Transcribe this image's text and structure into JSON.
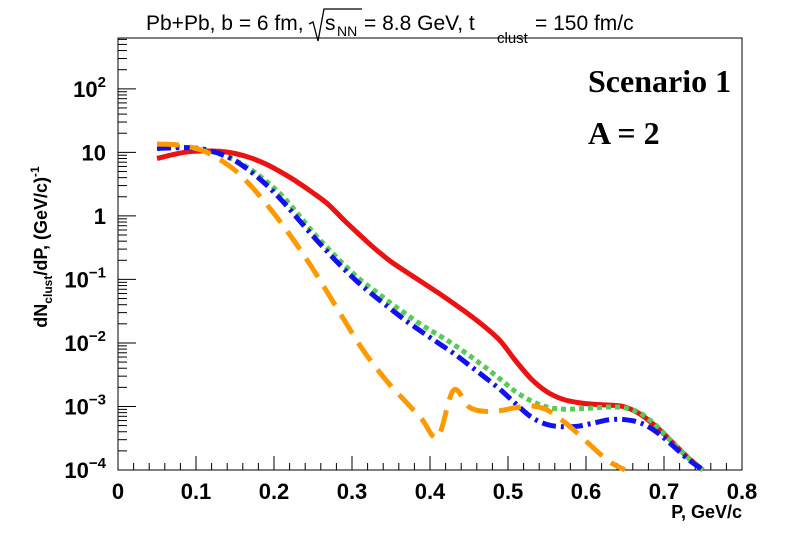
{
  "chart_data": {
    "type": "line",
    "title": {
      "prefix": "Pb+Pb, b = 6 fm,",
      "sqrt_s": "s",
      "sqrt_s_sub": "NN",
      "energy": " = 8.8 GeV, t",
      "t_sub": "clust",
      "time": " = 150 fm/c"
    },
    "xlabel": "P, GeV/c",
    "ylabel": {
      "base": "dN",
      "sub": "clust",
      "mid": "/dP, (GeV/c)",
      "sup": "-1"
    },
    "xlim": [
      0,
      0.8
    ],
    "ylim_log10": [
      -4,
      2.8
    ],
    "yscale": "log",
    "x_ticks": [
      "0",
      "0.1",
      "0.2",
      "0.3",
      "0.4",
      "0.5",
      "0.6",
      "0.7",
      "0.8"
    ],
    "y_ticks": [
      {
        "text": "10",
        "sup": "−4"
      },
      {
        "text": "10",
        "sup": "−3"
      },
      {
        "text": "10",
        "sup": "−2"
      },
      {
        "text": "10",
        "sup": "−1"
      },
      {
        "text": "1",
        "sup": ""
      },
      {
        "text": "10",
        "sup": ""
      },
      {
        "text": "10",
        "sup": "2"
      }
    ],
    "annotations": [
      "Scenario 1",
      "A = 2"
    ],
    "series": [
      {
        "name": "red-solid",
        "color": "#ee1111",
        "style": "solid",
        "x": [
          0.05,
          0.07,
          0.09,
          0.11,
          0.13,
          0.15,
          0.17,
          0.19,
          0.21,
          0.23,
          0.25,
          0.27,
          0.29,
          0.31,
          0.33,
          0.35,
          0.37,
          0.39,
          0.41,
          0.43,
          0.45,
          0.47,
          0.49,
          0.51,
          0.53,
          0.55,
          0.57,
          0.59,
          0.61,
          0.63,
          0.65,
          0.67,
          0.69,
          0.71,
          0.73,
          0.75
        ],
        "y": [
          8.0,
          9.2,
          10.2,
          10.5,
          10.4,
          9.6,
          8.2,
          6.5,
          4.8,
          3.4,
          2.3,
          1.5,
          0.85,
          0.5,
          0.3,
          0.19,
          0.13,
          0.09,
          0.062,
          0.042,
          0.028,
          0.018,
          0.0108,
          0.0052,
          0.0027,
          0.0017,
          0.0013,
          0.00115,
          0.00108,
          0.00105,
          0.00098,
          0.00075,
          0.00048,
          0.00028,
          0.00016,
          0.0001
        ]
      },
      {
        "name": "green-dotted",
        "color": "#55cc55",
        "style": "dotted",
        "x": [
          0.05,
          0.07,
          0.09,
          0.11,
          0.13,
          0.15,
          0.17,
          0.19,
          0.21,
          0.23,
          0.25,
          0.27,
          0.29,
          0.31,
          0.33,
          0.35,
          0.37,
          0.39,
          0.41,
          0.43,
          0.45,
          0.47,
          0.49,
          0.51,
          0.53,
          0.55,
          0.57,
          0.59,
          0.61,
          0.63,
          0.65,
          0.67,
          0.69,
          0.71,
          0.73,
          0.75
        ],
        "y": [
          12.5,
          12.3,
          11.8,
          11.0,
          9.4,
          7.5,
          5.4,
          3.5,
          2.1,
          1.1,
          0.55,
          0.3,
          0.17,
          0.1,
          0.065,
          0.042,
          0.028,
          0.019,
          0.0135,
          0.0095,
          0.0064,
          0.0042,
          0.0027,
          0.0017,
          0.00122,
          0.00098,
          0.00091,
          0.00092,
          0.00095,
          0.00098,
          0.00095,
          0.00078,
          0.0005,
          0.00028,
          0.00016,
          0.0001
        ]
      },
      {
        "name": "blue-dashdot",
        "color": "#1111ee",
        "style": "dashdot",
        "x": [
          0.05,
          0.07,
          0.09,
          0.11,
          0.13,
          0.15,
          0.17,
          0.19,
          0.21,
          0.23,
          0.25,
          0.27,
          0.29,
          0.31,
          0.33,
          0.35,
          0.37,
          0.39,
          0.41,
          0.43,
          0.45,
          0.47,
          0.49,
          0.51,
          0.53,
          0.55,
          0.57,
          0.59,
          0.61,
          0.63,
          0.65,
          0.67,
          0.69,
          0.71,
          0.73,
          0.75
        ],
        "y": [
          11.5,
          11.8,
          11.8,
          11.2,
          9.6,
          7.4,
          5.0,
          3.1,
          1.75,
          0.92,
          0.48,
          0.26,
          0.145,
          0.085,
          0.053,
          0.034,
          0.022,
          0.0148,
          0.0101,
          0.0069,
          0.0045,
          0.0029,
          0.00185,
          0.0011,
          0.00068,
          0.00052,
          0.00048,
          0.00049,
          0.00055,
          0.00062,
          0.00062,
          0.00055,
          0.0004,
          0.00025,
          0.00015,
          0.0001
        ]
      },
      {
        "name": "orange-dashed",
        "color": "#ff9900",
        "style": "dashed",
        "x": [
          0.05,
          0.07,
          0.09,
          0.11,
          0.13,
          0.15,
          0.17,
          0.19,
          0.21,
          0.23,
          0.25,
          0.27,
          0.29,
          0.31,
          0.33,
          0.35,
          0.37,
          0.39,
          0.41,
          0.43,
          0.45,
          0.47,
          0.49,
          0.51,
          0.53,
          0.55,
          0.57,
          0.59,
          0.61,
          0.63,
          0.65
        ],
        "y": [
          13.5,
          13.3,
          12.3,
          10.5,
          7.8,
          5.2,
          3.0,
          1.55,
          0.75,
          0.34,
          0.145,
          0.058,
          0.023,
          0.0092,
          0.0042,
          0.0021,
          0.00115,
          0.00062,
          0.00033,
          0.0018,
          0.00098,
          0.00084,
          0.00086,
          0.00096,
          0.00102,
          0.00088,
          0.0006,
          0.00037,
          0.00022,
          0.000135,
          0.0001
        ]
      }
    ]
  }
}
